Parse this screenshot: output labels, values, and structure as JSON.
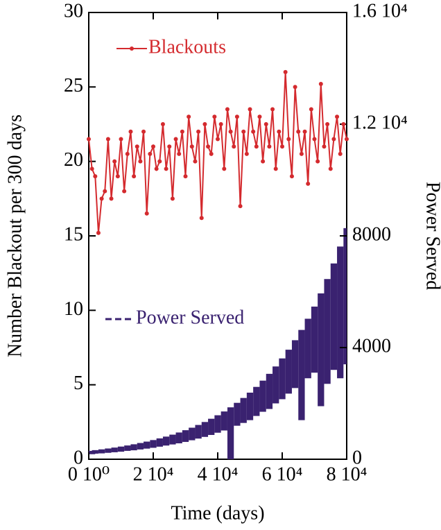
{
  "chart_data": {
    "type": "line",
    "xlabel": "Time (days)",
    "ylabel": "Number Blackout per 300 days",
    "y2label": "Power Served",
    "xlim": [
      0,
      80000
    ],
    "xticks": [
      {
        "value": 0,
        "label": "0 10⁰"
      },
      {
        "value": 20000,
        "label": "2 10⁴"
      },
      {
        "value": 40000,
        "label": "4 10⁴"
      },
      {
        "value": 60000,
        "label": "6 10⁴"
      },
      {
        "value": 80000,
        "label": "8 10⁴"
      }
    ],
    "ylim": [
      0,
      30
    ],
    "yticks": [
      0,
      5,
      10,
      15,
      20,
      25,
      30
    ],
    "y2lim": [
      0,
      16000
    ],
    "y2ticks": [
      0,
      4000,
      8000,
      {
        "value": 12000,
        "label": "1.2 10⁴"
      },
      {
        "value": 16000,
        "label": "1.6 10⁴"
      }
    ],
    "series": [
      {
        "name": "Blackouts",
        "color": "#d42a2e",
        "axis": "y",
        "x": [
          0,
          1000,
          2000,
          3000,
          4000,
          5000,
          6000,
          7000,
          8000,
          9000,
          10000,
          11000,
          12000,
          13000,
          14000,
          15000,
          16000,
          17000,
          18000,
          19000,
          20000,
          21000,
          22000,
          23000,
          24000,
          25000,
          26000,
          27000,
          28000,
          29000,
          30000,
          31000,
          32000,
          33000,
          34000,
          35000,
          36000,
          37000,
          38000,
          39000,
          40000,
          41000,
          42000,
          43000,
          44000,
          45000,
          46000,
          47000,
          48000,
          49000,
          50000,
          51000,
          52000,
          53000,
          54000,
          55000,
          56000,
          57000,
          58000,
          59000,
          60000,
          61000,
          62000,
          63000,
          64000,
          65000,
          66000,
          67000,
          68000,
          69000,
          70000,
          71000,
          72000,
          73000,
          74000,
          75000,
          76000,
          77000,
          78000,
          79000,
          80000
        ],
        "values": [
          21.5,
          19.5,
          19,
          15.2,
          17.5,
          18,
          21.5,
          17.5,
          20,
          19,
          21.5,
          18,
          20.5,
          22,
          19,
          21,
          20,
          22,
          16.5,
          20.5,
          21,
          19.5,
          20,
          22.5,
          19.5,
          21,
          17.5,
          21.5,
          20.5,
          22,
          19,
          23,
          21,
          20,
          22,
          16.2,
          22.5,
          21,
          20.5,
          23,
          21.5,
          22.5,
          19.5,
          23.5,
          22,
          21,
          23,
          17,
          22,
          20.5,
          23.5,
          22,
          21,
          23,
          20,
          22.5,
          21,
          23.5,
          19.5,
          22,
          21,
          26,
          21.5,
          19,
          25,
          22,
          20.5,
          22,
          18.5,
          23.5,
          21.5,
          20,
          25.2,
          21,
          22.5,
          19.5,
          21.5,
          23,
          20.5,
          22.5,
          21.5
        ]
      },
      {
        "name": "Power Served",
        "color": "#3a2270",
        "axis": "y2",
        "x": [
          0,
          2000,
          4000,
          6000,
          8000,
          10000,
          12000,
          14000,
          16000,
          18000,
          20000,
          22000,
          24000,
          26000,
          28000,
          30000,
          32000,
          34000,
          36000,
          38000,
          40000,
          42000,
          44000,
          46000,
          48000,
          50000,
          52000,
          54000,
          56000,
          58000,
          60000,
          62000,
          64000,
          66000,
          68000,
          70000,
          72000,
          74000,
          76000,
          78000,
          80000
        ],
        "values": [
          300,
          326,
          354,
          385,
          418,
          454,
          493,
          536,
          582,
          632,
          687,
          747,
          811,
          881,
          958,
          1040,
          1130,
          1228,
          1334,
          1450,
          1575,
          1711,
          1859,
          2020,
          2195,
          2385,
          2591,
          2815,
          3059,
          3323,
          3611,
          3923,
          4263,
          4631,
          5032,
          5467,
          5940,
          6454,
          7012,
          7618,
          8277
        ],
        "lower": [
          180,
          200,
          210,
          230,
          250,
          270,
          300,
          320,
          350,
          380,
          410,
          450,
          490,
          530,
          570,
          620,
          680,
          740,
          800,
          870,
          950,
          1030,
          0,
          1200,
          1300,
          1400,
          1550,
          1700,
          1800,
          2000,
          2150,
          2350,
          2550,
          1400,
          2900,
          3100,
          1900,
          2700,
          3200,
          2900,
          3400
        ]
      }
    ]
  }
}
